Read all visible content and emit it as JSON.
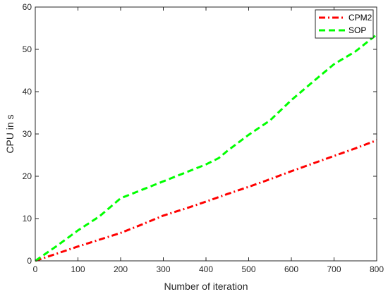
{
  "chart_data": {
    "type": "line",
    "title": "",
    "xlabel": "Number of iteration",
    "ylabel": "CPU in s",
    "xlim": [
      0,
      800
    ],
    "ylim": [
      0,
      60
    ],
    "xticks": [
      0,
      100,
      200,
      300,
      400,
      500,
      600,
      700,
      800
    ],
    "yticks": [
      0,
      10,
      20,
      30,
      40,
      50,
      60
    ],
    "grid": false,
    "legend_position": "top-right",
    "series": [
      {
        "name": "CPM2",
        "color": "#ff0000",
        "line_style": "dash-dot",
        "x": [
          0,
          50,
          100,
          150,
          200,
          250,
          300,
          350,
          400,
          450,
          500,
          550,
          600,
          650,
          700,
          750,
          800
        ],
        "y": [
          0,
          1.7,
          3.4,
          5,
          6.6,
          8.6,
          10.7,
          12.3,
          14,
          15.8,
          17.5,
          19.3,
          21.2,
          23,
          24.8,
          26.6,
          28.5
        ]
      },
      {
        "name": "SOP",
        "color": "#00ff00",
        "line_style": "dashed",
        "x": [
          0,
          50,
          100,
          150,
          200,
          250,
          300,
          350,
          400,
          430,
          450,
          500,
          550,
          600,
          650,
          700,
          750,
          800
        ],
        "y": [
          0,
          3.5,
          7.2,
          10.5,
          14.8,
          16.8,
          18.8,
          20.8,
          22.8,
          24.3,
          26,
          29.8,
          33.2,
          38,
          42.3,
          46.5,
          49.5,
          53.5
        ]
      }
    ]
  }
}
